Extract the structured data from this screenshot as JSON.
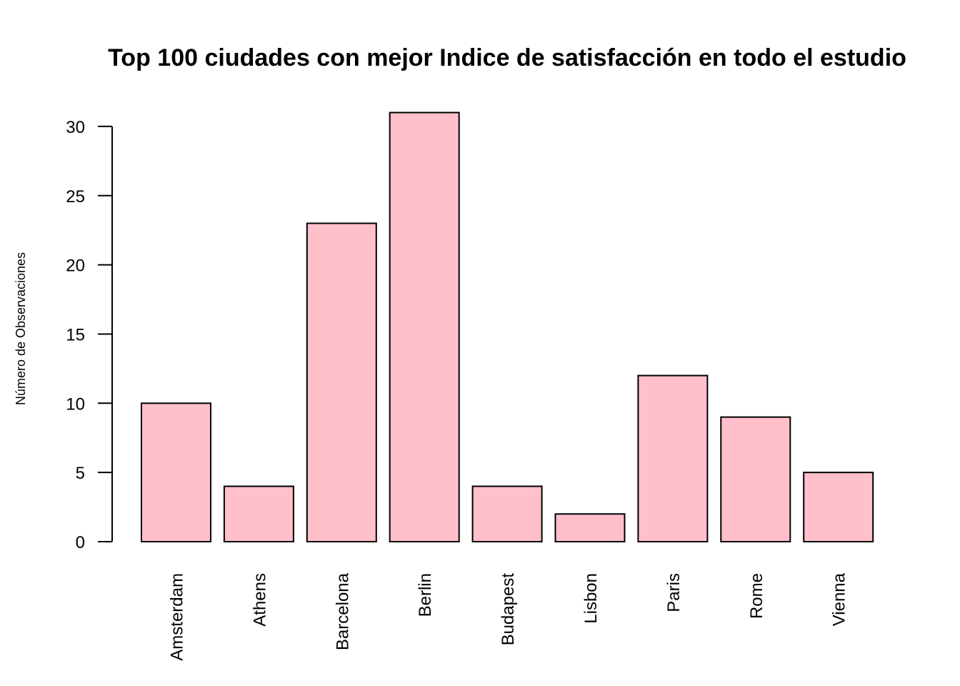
{
  "chart_data": {
    "type": "bar",
    "title": "Top 100 ciudades con mejor Indice de satisfacción en todo el estudio",
    "xlabel": "",
    "ylabel": "Número de Observaciones",
    "categories": [
      "Amsterdam",
      "Athens",
      "Barcelona",
      "Berlin",
      "Budapest",
      "Lisbon",
      "Paris",
      "Rome",
      "Vienna"
    ],
    "values": [
      10,
      4,
      23,
      31,
      4,
      2,
      12,
      9,
      5
    ],
    "ylim": [
      0,
      30
    ],
    "yticks": [
      0,
      5,
      10,
      15,
      20,
      25,
      30
    ],
    "bar_color": "#FFC0CB",
    "border_color": "#000000",
    "grid": false,
    "legend": "none"
  }
}
